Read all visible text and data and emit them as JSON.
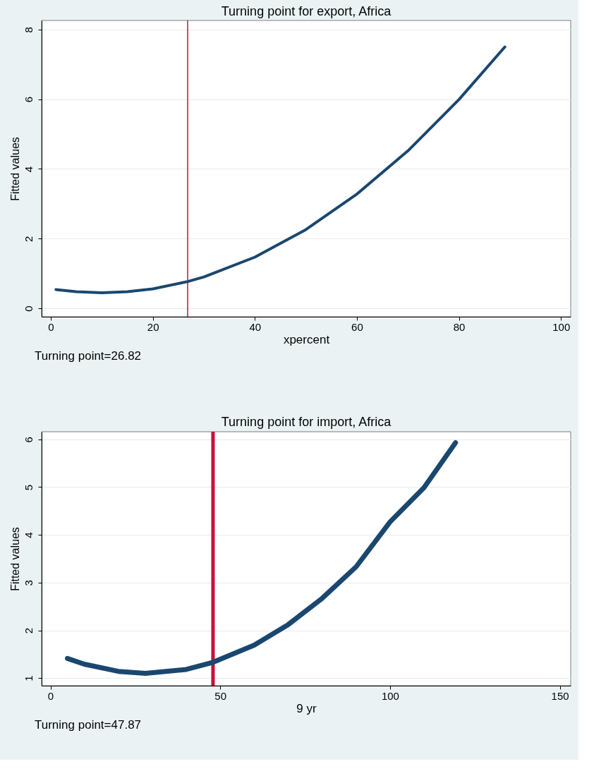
{
  "chart_data": [
    {
      "type": "line",
      "title": "Turning point for export, Africa",
      "xlabel": "xpercent",
      "ylabel": "Fitted values",
      "x": [
        1,
        5,
        10,
        15,
        20,
        26.82,
        30,
        40,
        50,
        60,
        70,
        80,
        89
      ],
      "series": [
        {
          "color": "#1a476f",
          "values": [
            0.54,
            0.48,
            0.45,
            0.48,
            0.56,
            0.77,
            0.9,
            1.47,
            2.26,
            3.28,
            4.52,
            5.99,
            7.5
          ]
        }
      ],
      "xlim": [
        -1.8,
        101.9
      ],
      "xticks": [
        0,
        20,
        40,
        60,
        80,
        100
      ],
      "ylim": [
        -0.24,
        8.26
      ],
      "yticks": [
        0,
        2,
        4,
        6,
        8
      ],
      "ref_lines": [
        {
          "axis": "x",
          "value": 26.82,
          "color": "#c0143c"
        }
      ],
      "annotations": [
        "Turning point=26.82"
      ],
      "grid": "y",
      "marker": "none",
      "line_style": "solid"
    },
    {
      "type": "line",
      "title": "Turning point for import, Africa",
      "xlabel": "9 yr",
      "ylabel": "Fitted values",
      "x": [
        5,
        10,
        20,
        28,
        40,
        47.87,
        60,
        70,
        80,
        90,
        100,
        110,
        119.3
      ],
      "series": [
        {
          "color": "#1a476f",
          "values": [
            1.41,
            1.29,
            1.14,
            1.1,
            1.18,
            1.33,
            1.69,
            2.12,
            2.67,
            3.33,
            4.27,
            4.99,
            5.93
          ]
        }
      ],
      "xlim": [
        -2.6,
        153.2
      ],
      "xticks": [
        0,
        50,
        100,
        150
      ],
      "ylim": [
        0.84,
        6.16
      ],
      "yticks": [
        1,
        2,
        3,
        4,
        5,
        6
      ],
      "ref_lines": [
        {
          "axis": "x",
          "value": 47.87,
          "color": "#c0143c"
        }
      ],
      "annotations": [
        "Turning point=47.87"
      ],
      "grid": "y",
      "marker": "none",
      "line_style": "solid"
    }
  ]
}
